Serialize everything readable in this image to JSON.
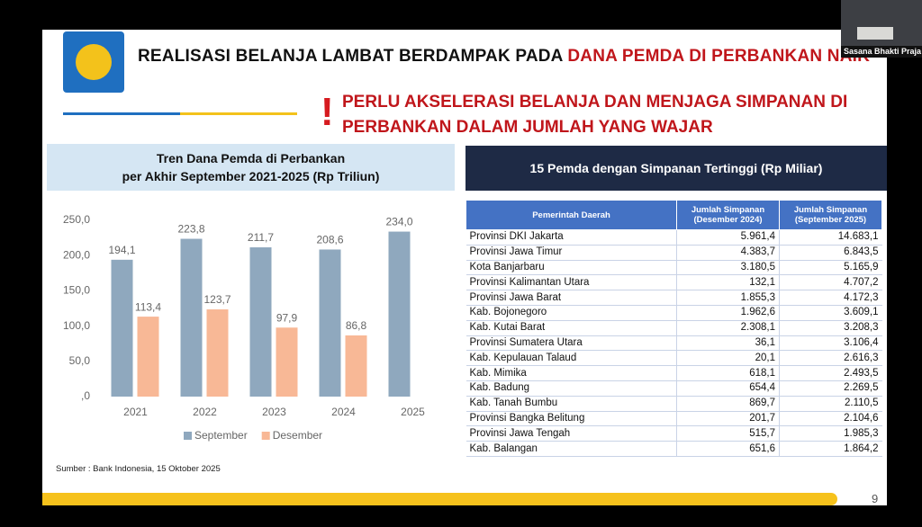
{
  "header": {
    "title": "REALISASI BELANJA LAMBAT BERDAMPAK PADA ",
    "title_highlight": "DANA PEMDA DI PERBANKAN NAIK",
    "alert_mark": "!",
    "alert_lines": [
      "PERLU AKSELERASI BELANJA DAN MENJAGA SIMPANAN DI",
      "PERBANKAN DALAM JUMLAH YANG WAJAR"
    ]
  },
  "chart_data": {
    "type": "bar",
    "title": "Tren Dana Pemda di Perbankan",
    "subtitle": "per Akhir September 2021-2025 (Rp Triliun)",
    "categories": [
      "2021",
      "2022",
      "2023",
      "2024",
      "2025"
    ],
    "series": [
      {
        "name": "September",
        "color": "#8fa8be",
        "values": [
          194.1,
          223.8,
          211.7,
          208.6,
          234.0
        ],
        "value_labels": [
          "194,1",
          "223,8",
          "211,7",
          "208,6",
          "234,0"
        ]
      },
      {
        "name": "Desember",
        "color": "#f8b896",
        "values": [
          113.4,
          123.7,
          97.9,
          86.8,
          null
        ],
        "value_labels": [
          "113,4",
          "123,7",
          "97,9",
          "86,8",
          null
        ]
      }
    ],
    "ylim": [
      0,
      250
    ],
    "yticks": [
      {
        "value": 0,
        "label": ",0"
      },
      {
        "value": 50,
        "label": "50,0"
      },
      {
        "value": 100,
        "label": "100,0"
      },
      {
        "value": 150,
        "label": "150,0"
      },
      {
        "value": 200,
        "label": "200,0"
      },
      {
        "value": 250,
        "label": "250,0"
      }
    ],
    "legend": "bottom"
  },
  "table": {
    "title": "15 Pemda dengan Simpanan Tertinggi (Rp Miliar)",
    "columns": [
      "Pemerintah Daerah",
      "Jumlah Simpanan (Desember 2024)",
      "Jumlah Simpanan (September 2025)"
    ],
    "rows": [
      [
        "Provinsi DKI Jakarta",
        "5.961,4",
        "14.683,1"
      ],
      [
        "Provinsi Jawa Timur",
        "4.383,7",
        "6.843,5"
      ],
      [
        "Kota Banjarbaru",
        "3.180,5",
        "5.165,9"
      ],
      [
        "Provinsi Kalimantan Utara",
        "132,1",
        "4.707,2"
      ],
      [
        "Provinsi Jawa Barat",
        "1.855,3",
        "4.172,3"
      ],
      [
        "Kab. Bojonegoro",
        "1.962,6",
        "3.609,1"
      ],
      [
        "Kab. Kutai Barat",
        "2.308,1",
        "3.208,3"
      ],
      [
        "Provinsi Sumatera Utara",
        "36,1",
        "3.106,4"
      ],
      [
        "Kab. Kepulauan Talaud",
        "20,1",
        "2.616,3"
      ],
      [
        "Kab. Mimika",
        "618,1",
        "2.493,5"
      ],
      [
        "Kab. Badung",
        "654,4",
        "2.269,5"
      ],
      [
        "Kab. Tanah Bumbu",
        "869,7",
        "2.110,5"
      ],
      [
        "Provinsi Bangka Belitung",
        "201,7",
        "2.104,6"
      ],
      [
        "Provinsi Jawa Tengah",
        "515,7",
        "1.985,3"
      ],
      [
        "Kab. Balangan",
        "651,6",
        "1.864,2"
      ]
    ]
  },
  "source": "Sumber : Bank Indonesia, 15 Oktober 2025",
  "page_number": "9",
  "webcam_label": "Sasana Bhakti Praja"
}
